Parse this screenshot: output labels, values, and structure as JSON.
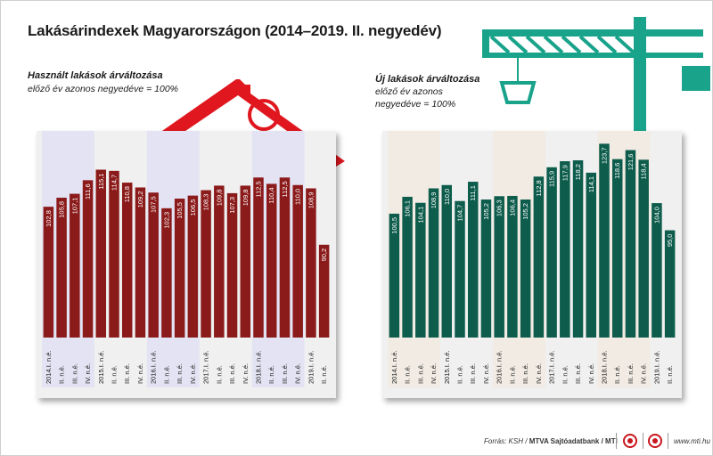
{
  "title": "Lakásárindexek Magyarországon (2014–2019. II. negyedév)",
  "colors": {
    "red_bar": "#8b1a1a",
    "green_bar": "#0d5c4c",
    "roof": "#e0171f",
    "crane": "#1aa38b",
    "band": "#e3e3f3",
    "band_green": "#f1ebe3"
  },
  "left": {
    "heading": "Használt lakások árváltozása",
    "note": "előző év azonos negyedéve = 100%"
  },
  "right": {
    "heading": "Új lakások árváltozása",
    "note_line1": "előző év azonos",
    "note_line2": "negyedéve = 100%"
  },
  "footer": {
    "source": "Forrás: KSH / ",
    "agency": "MTVA Sajtóadatbank / MTI",
    "site": "www.mti.hu"
  },
  "chart_data": [
    {
      "type": "bar",
      "title": "Használt lakások árváltozása",
      "subtitle": "előző év azonos negyedéve = 100%",
      "categories": [
        "2014.I. n.é.",
        "II. n.é.",
        "III. n.é.",
        "IV. n.é.",
        "2015.I. n.é.",
        "II. n.é.",
        "III. n.é.",
        "IV. n.é.",
        "2016.I. n.é.",
        "II. n.é.",
        "III. n.é.",
        "IV. n.é.",
        "2017.I. n.é.",
        "II. n.é.",
        "III. n.é.",
        "IV. n.é.",
        "2018.I. n.é.",
        "II. n.é.",
        "III. n.é.",
        "IV. n.é.",
        "2019.I. n.é.",
        "II. n.é."
      ],
      "values": [
        102.8,
        105.8,
        107.1,
        111.6,
        115.1,
        114.7,
        110.8,
        109.2,
        107.5,
        102.3,
        105.5,
        106.5,
        108.3,
        109.8,
        107.3,
        109.8,
        112.5,
        110.4,
        112.5,
        110.0,
        108.9,
        90.2
      ],
      "labels": [
        "102,8",
        "105,8",
        "107,1",
        "111,6",
        "115,1",
        "114,7",
        "110,8",
        "109,2",
        "107,5",
        "102,3",
        "105,5",
        "106,5",
        "108,3",
        "109,8",
        "107,3",
        "109,8",
        "112,5",
        "110,4",
        "112,5",
        "110,0",
        "108,9",
        "90,2"
      ],
      "grid": false
    },
    {
      "type": "bar",
      "title": "Új lakások árváltozása",
      "subtitle": "előző év azonos negyedéve = 100%",
      "categories": [
        "2014.I. n.é.",
        "II. n.é.",
        "III. n.é.",
        "IV. n.é.",
        "2015.I. n.é.",
        "II. n.é.",
        "III. n.é.",
        "IV. n.é.",
        "2016.I. n.é.",
        "II. n.é.",
        "III. n.é.",
        "IV. n.é.",
        "2017.I. n.é.",
        "II. n.é.",
        "III. n.é.",
        "IV. n.é.",
        "2018.I. n.é.",
        "II. n.é.",
        "III. n.é.",
        "IV. n.é.",
        "2019.I. n.é.",
        "II. n.é."
      ],
      "values": [
        100.5,
        106.1,
        104.1,
        108.9,
        110.0,
        104.7,
        111.1,
        105.2,
        106.3,
        106.4,
        105.2,
        112.8,
        115.9,
        117.9,
        118.2,
        114.1,
        123.7,
        118.6,
        121.6,
        118.4,
        104.0,
        95.0
      ],
      "labels": [
        "100,5",
        "106,1",
        "104,1",
        "108,9",
        "110,0",
        "104,7",
        "111,1",
        "105,2",
        "106,3",
        "106,4",
        "105,2",
        "112,8",
        "115,9",
        "117,9",
        "118,2",
        "114,1",
        "123,7",
        "118,6",
        "121,6",
        "118,4",
        "104,0",
        "95,0"
      ],
      "grid": false
    }
  ]
}
